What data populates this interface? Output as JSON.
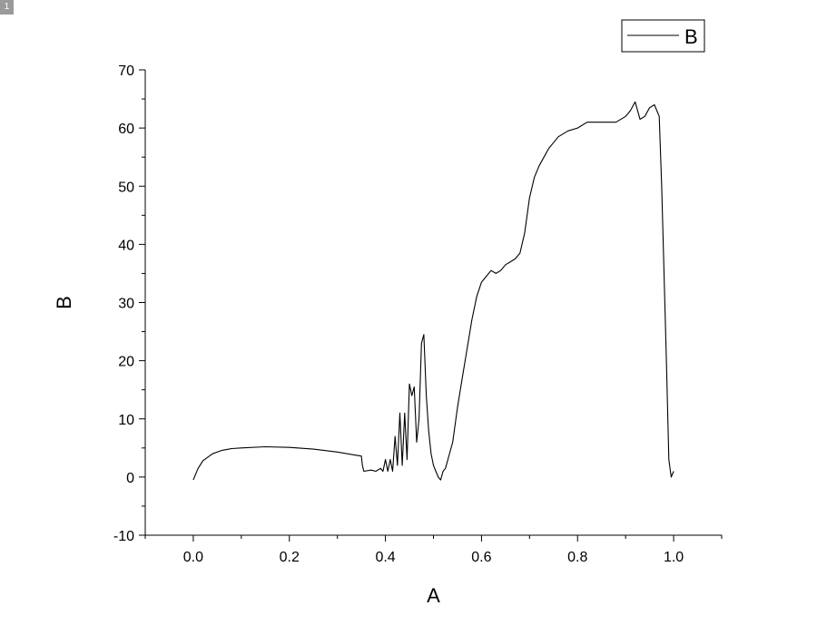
{
  "page_badge": "1",
  "chart_data": {
    "type": "line",
    "title": "",
    "xlabel": "A",
    "ylabel": "B",
    "xlim": [
      -0.1,
      1.1
    ],
    "ylim": [
      -10,
      70
    ],
    "x_ticks": [
      0.0,
      0.2,
      0.4,
      0.6,
      0.8,
      1.0
    ],
    "x_tick_labels": [
      "0.0",
      "0.2",
      "0.4",
      "0.6",
      "0.8",
      "1.0"
    ],
    "y_ticks": [
      -10,
      0,
      10,
      20,
      30,
      40,
      50,
      60,
      70
    ],
    "y_tick_labels": [
      "-10",
      "0",
      "10",
      "20",
      "30",
      "40",
      "50",
      "60",
      "70"
    ],
    "grid": false,
    "legend": {
      "position": "top-right",
      "entries": [
        "B"
      ]
    },
    "series": [
      {
        "name": "B",
        "color": "#000000",
        "points": [
          [
            0.0,
            -0.5
          ],
          [
            0.01,
            1.5
          ],
          [
            0.02,
            2.8
          ],
          [
            0.04,
            4.0
          ],
          [
            0.06,
            4.6
          ],
          [
            0.08,
            4.9
          ],
          [
            0.1,
            5.0
          ],
          [
            0.15,
            5.2
          ],
          [
            0.2,
            5.1
          ],
          [
            0.25,
            4.8
          ],
          [
            0.3,
            4.3
          ],
          [
            0.35,
            3.6
          ],
          [
            0.352,
            2.0
          ],
          [
            0.355,
            1.0
          ],
          [
            0.37,
            1.2
          ],
          [
            0.38,
            1.0
          ],
          [
            0.39,
            1.5
          ],
          [
            0.395,
            1.0
          ],
          [
            0.4,
            3.0
          ],
          [
            0.405,
            1.0
          ],
          [
            0.41,
            3.0
          ],
          [
            0.415,
            1.0
          ],
          [
            0.42,
            7.0
          ],
          [
            0.425,
            2.0
          ],
          [
            0.43,
            11.0
          ],
          [
            0.435,
            2.0
          ],
          [
            0.44,
            11.0
          ],
          [
            0.445,
            3.0
          ],
          [
            0.45,
            16.0
          ],
          [
            0.455,
            14.0
          ],
          [
            0.46,
            15.5
          ],
          [
            0.465,
            6.0
          ],
          [
            0.47,
            10.0
          ],
          [
            0.475,
            23.0
          ],
          [
            0.48,
            24.5
          ],
          [
            0.485,
            14.0
          ],
          [
            0.49,
            8.0
          ],
          [
            0.495,
            4.0
          ],
          [
            0.5,
            2.0
          ],
          [
            0.505,
            1.0
          ],
          [
            0.51,
            0.0
          ],
          [
            0.515,
            -0.5
          ],
          [
            0.52,
            1.0
          ],
          [
            0.525,
            1.5
          ],
          [
            0.53,
            3.0
          ],
          [
            0.54,
            6.0
          ],
          [
            0.55,
            12.0
          ],
          [
            0.56,
            17.0
          ],
          [
            0.57,
            22.0
          ],
          [
            0.58,
            27.0
          ],
          [
            0.59,
            31.0
          ],
          [
            0.6,
            33.5
          ],
          [
            0.61,
            34.5
          ],
          [
            0.62,
            35.5
          ],
          [
            0.63,
            35.0
          ],
          [
            0.64,
            35.5
          ],
          [
            0.65,
            36.5
          ],
          [
            0.66,
            37.0
          ],
          [
            0.67,
            37.5
          ],
          [
            0.68,
            38.5
          ],
          [
            0.69,
            42.0
          ],
          [
            0.7,
            48.0
          ],
          [
            0.71,
            51.5
          ],
          [
            0.72,
            53.5
          ],
          [
            0.73,
            55.0
          ],
          [
            0.74,
            56.5
          ],
          [
            0.75,
            57.5
          ],
          [
            0.76,
            58.5
          ],
          [
            0.78,
            59.5
          ],
          [
            0.8,
            60.0
          ],
          [
            0.82,
            61.0
          ],
          [
            0.84,
            61.0
          ],
          [
            0.86,
            61.0
          ],
          [
            0.88,
            61.0
          ],
          [
            0.9,
            62.0
          ],
          [
            0.91,
            63.0
          ],
          [
            0.92,
            64.5
          ],
          [
            0.93,
            61.5
          ],
          [
            0.94,
            62.0
          ],
          [
            0.95,
            63.5
          ],
          [
            0.96,
            64.0
          ],
          [
            0.97,
            62.0
          ],
          [
            0.975,
            50.0
          ],
          [
            0.98,
            35.0
          ],
          [
            0.985,
            20.0
          ],
          [
            0.99,
            3.0
          ],
          [
            0.995,
            0.0
          ],
          [
            1.0,
            1.0
          ]
        ]
      }
    ]
  }
}
